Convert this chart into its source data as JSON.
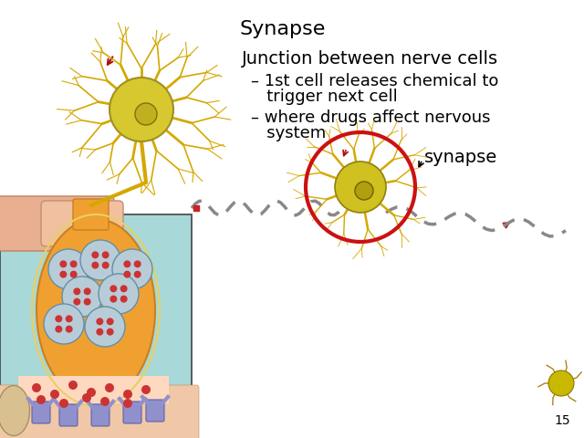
{
  "title": "Synapse",
  "title_fontsize": 16,
  "title_fontfamily": "DejaVu Sans",
  "bg_color": "#ffffff",
  "text_color": "#000000",
  "main_heading": "Junction between nerve cells",
  "bullet1_line1": "– 1st cell releases chemical to",
  "bullet1_line2": "   trigger next cell",
  "bullet2_line1": "– where drugs affect nervous",
  "bullet2_line2": "   system",
  "synapse_label": "synapse",
  "page_number": "15",
  "font_size_heading": 14,
  "font_size_bullets": 13,
  "font_size_synapse": 14,
  "red_circle_color": "#cc1111",
  "red_arrow_color": "#aa1111",
  "chain_color": "#aaaaaa",
  "neuron_gold": "#d4a800",
  "neuron_yellow": "#e8c800",
  "neuron_dark": "#a07800",
  "inset_teal": "#a8d8d8",
  "inset_orange": "#f0a030",
  "inset_pink": "#e8b8a0",
  "vesicle_fill": "#b8ccd8",
  "vesicle_edge": "#6090a8",
  "vesicle_dot": "#cc3333",
  "receptor_fill": "#9090cc",
  "receptor_edge": "#6060aa"
}
